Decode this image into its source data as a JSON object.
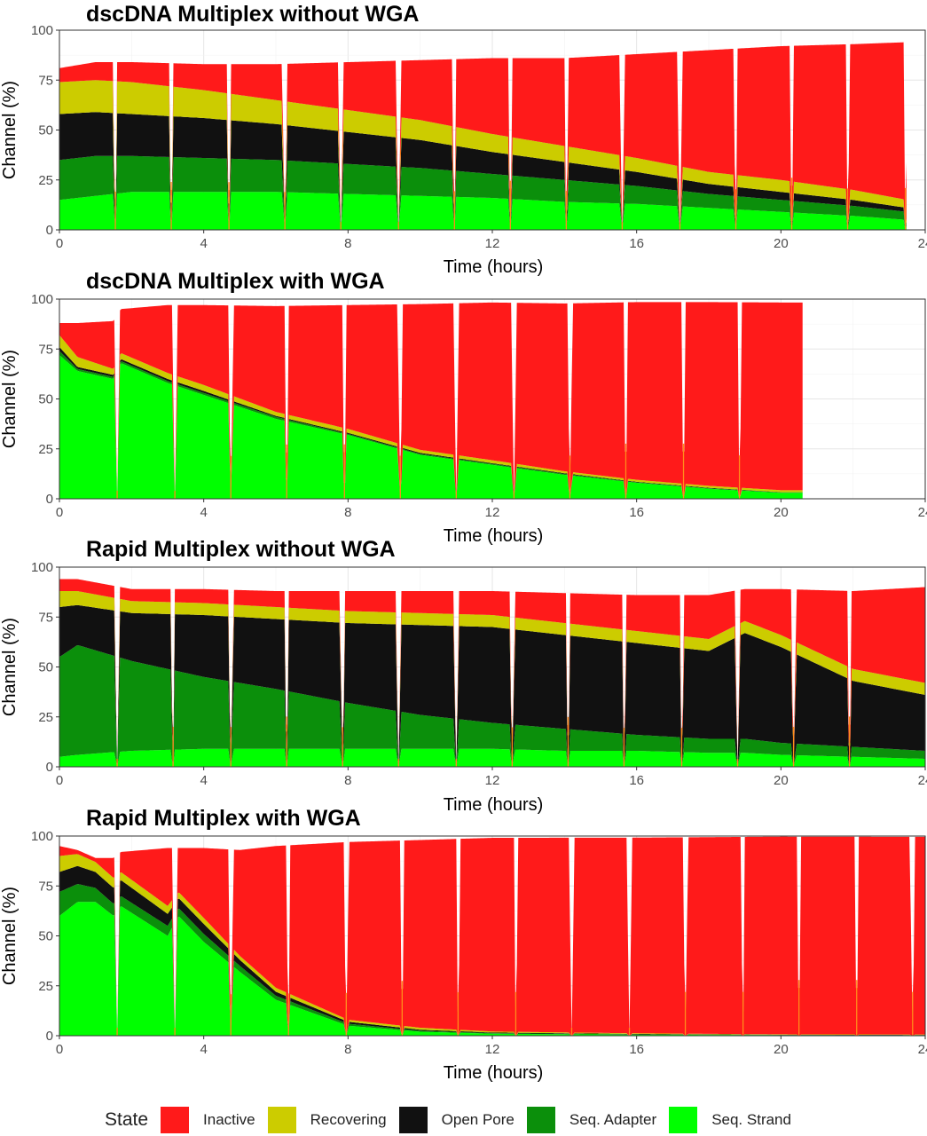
{
  "chart_data": [
    {
      "type": "area",
      "stacked": true,
      "title": "dscDNA Multiplex without WGA",
      "xlabel": "Time (hours)",
      "ylabel": "Channel (%)",
      "xlim": [
        0,
        24
      ],
      "ylim": [
        0,
        100
      ],
      "xticks": [
        0,
        4,
        8,
        12,
        16,
        20,
        24
      ],
      "yticks": [
        0,
        25,
        50,
        75,
        100
      ],
      "grid": true,
      "end_time": 23.5,
      "mux_scan_times": [
        1.55,
        3.1,
        4.7,
        6.25,
        7.8,
        9.4,
        10.95,
        12.5,
        14.05,
        15.6,
        17.2,
        18.75,
        20.3,
        21.85,
        23.45
      ],
      "x": [
        0,
        1,
        2,
        4,
        6,
        8,
        10,
        12,
        14,
        16,
        18,
        20,
        22,
        23.5
      ],
      "series": [
        {
          "name": "Seq. Strand",
          "values": [
            15,
            17,
            19,
            19,
            19,
            18,
            17,
            16,
            14,
            13,
            11,
            9,
            7,
            5
          ]
        },
        {
          "name": "Seq. Adapter",
          "values": [
            20,
            20,
            18,
            17,
            16,
            15,
            14,
            12,
            11,
            9,
            7,
            6,
            5,
            4
          ]
        },
        {
          "name": "Open Pore",
          "values": [
            23,
            22,
            21,
            20,
            18,
            16,
            14,
            11,
            9,
            7,
            5,
            4,
            3,
            2
          ]
        },
        {
          "name": "Recovering",
          "values": [
            16,
            16,
            16,
            14,
            12,
            11,
            10,
            9,
            8,
            7,
            6,
            6,
            5,
            4
          ]
        },
        {
          "name": "Inactive",
          "values": [
            7,
            9,
            10,
            13,
            18,
            24,
            30,
            38,
            44,
            52,
            61,
            67,
            73,
            79
          ]
        }
      ]
    },
    {
      "type": "area",
      "stacked": true,
      "title": "dscDNA Multiplex with WGA",
      "xlabel": "Time (hours)",
      "ylabel": "Channel (%)",
      "xlim": [
        0,
        24
      ],
      "ylim": [
        0,
        100
      ],
      "xticks": [
        0,
        4,
        8,
        12,
        16,
        20,
        24
      ],
      "yticks": [
        0,
        25,
        50,
        75,
        100
      ],
      "grid": true,
      "end_time": 20.6,
      "mux_scan_times": [
        1.6,
        3.2,
        4.75,
        6.3,
        7.9,
        9.45,
        11.0,
        12.6,
        14.15,
        15.7,
        17.3,
        18.85
      ],
      "x": [
        0,
        0.5,
        1.5,
        1.7,
        3,
        4,
        6,
        8,
        10,
        12,
        14,
        16,
        18,
        20,
        20.6
      ],
      "series": [
        {
          "name": "Seq. Strand",
          "values": [
            72,
            64,
            60,
            68,
            58,
            52,
            40,
            32,
            22,
            17,
            12,
            8,
            5,
            3,
            3
          ]
        },
        {
          "name": "Seq. Adapter",
          "values": [
            2,
            1,
            1,
            1,
            1,
            1,
            1,
            0.5,
            0.5,
            0.5,
            0.5,
            0.3,
            0.3,
            0.2,
            0.2
          ]
        },
        {
          "name": "Open Pore",
          "values": [
            2,
            1,
            1,
            1,
            1,
            1,
            0.5,
            0.5,
            0.5,
            0.3,
            0.3,
            0.2,
            0.2,
            0.1,
            0.1
          ]
        },
        {
          "name": "Recovering",
          "values": [
            6,
            5,
            3,
            3,
            3,
            3,
            2,
            2,
            1.5,
            1.5,
            1,
            1,
            1,
            1,
            1
          ]
        },
        {
          "name": "Inactive",
          "values": [
            6,
            17,
            24,
            22,
            34,
            40,
            53,
            62,
            73,
            79,
            84,
            89,
            92,
            94,
            94
          ]
        }
      ]
    },
    {
      "type": "area",
      "stacked": true,
      "title": "Rapid Multiplex without WGA",
      "xlabel": "Time (hours)",
      "ylabel": "Channel (%)",
      "xlim": [
        0,
        24
      ],
      "ylim": [
        0,
        100
      ],
      "xticks": [
        0,
        4,
        8,
        12,
        16,
        20,
        24
      ],
      "yticks": [
        0,
        25,
        50,
        75,
        100
      ],
      "grid": true,
      "end_time": 24,
      "mux_scan_times": [
        1.6,
        3.15,
        4.75,
        6.3,
        7.85,
        9.4,
        11.0,
        12.55,
        14.1,
        15.65,
        17.25,
        18.8,
        20.35,
        21.9
      ],
      "x": [
        0,
        0.5,
        2,
        4,
        6,
        8,
        10,
        12,
        14,
        16,
        18,
        19,
        20,
        22,
        24
      ],
      "series": [
        {
          "name": "Seq. Strand",
          "values": [
            5,
            6,
            8,
            9,
            9,
            9,
            9,
            9,
            8,
            8,
            7,
            7,
            6,
            5,
            4
          ]
        },
        {
          "name": "Seq. Adapter",
          "values": [
            50,
            55,
            45,
            36,
            30,
            23,
            17,
            13,
            11,
            8,
            7,
            7,
            6,
            5,
            4
          ]
        },
        {
          "name": "Open Pore",
          "values": [
            25,
            20,
            24,
            31,
            35,
            40,
            45,
            48,
            47,
            46,
            44,
            53,
            48,
            33,
            28
          ]
        },
        {
          "name": "Recovering",
          "values": [
            8,
            7,
            6,
            6,
            6,
            6,
            6,
            6,
            6,
            6,
            6,
            6,
            6,
            6,
            6
          ]
        },
        {
          "name": "Inactive",
          "values": [
            6,
            6,
            6,
            7,
            8,
            10,
            11,
            12,
            15,
            18,
            22,
            16,
            23,
            39,
            48
          ]
        }
      ]
    },
    {
      "type": "area",
      "stacked": true,
      "title": "Rapid Multiplex with WGA",
      "xlabel": "Time (hours)",
      "ylabel": "Channel (%)",
      "xlim": [
        0,
        24
      ],
      "ylim": [
        0,
        100
      ],
      "xticks": [
        0,
        4,
        8,
        12,
        16,
        20,
        24
      ],
      "yticks": [
        0,
        25,
        50,
        75,
        100
      ],
      "grid": true,
      "end_time": 24,
      "mux_scan_times": [
        1.6,
        3.2,
        4.75,
        6.35,
        7.95,
        9.5,
        11.05,
        12.65,
        14.2,
        15.8,
        17.35,
        18.95,
        20.5,
        22.1,
        23.65
      ],
      "x": [
        0,
        0.5,
        1,
        1.5,
        1.7,
        3,
        3.3,
        4,
        5,
        6,
        8,
        10,
        12,
        16,
        20,
        24
      ],
      "series": [
        {
          "name": "Seq. Strand",
          "values": [
            60,
            67,
            67,
            60,
            65,
            50,
            60,
            47,
            32,
            18,
            5,
            2,
            1,
            0.5,
            0.3,
            0.2
          ]
        },
        {
          "name": "Seq. Adapter",
          "values": [
            12,
            9,
            7,
            6,
            5,
            5,
            4,
            4,
            3,
            2,
            1,
            0.5,
            0.3,
            0.2,
            0.1,
            0.1
          ]
        },
        {
          "name": "Open Pore",
          "values": [
            10,
            9,
            8,
            8,
            8,
            6,
            5,
            5,
            3,
            2,
            1,
            0.5,
            0.3,
            0.2,
            0.1,
            0.1
          ]
        },
        {
          "name": "Recovering",
          "values": [
            8,
            6,
            5,
            5,
            4,
            4,
            3,
            3,
            2,
            2,
            1,
            1,
            0.5,
            0.3,
            0.2,
            0.2
          ]
        },
        {
          "name": "Inactive",
          "values": [
            5,
            2,
            2,
            10,
            10,
            29,
            22,
            35,
            53,
            71,
            89,
            94,
            97,
            98,
            99,
            99
          ]
        }
      ]
    }
  ],
  "legend": {
    "title": "State",
    "items": [
      {
        "label": "Inactive",
        "color": "#ff1a1a"
      },
      {
        "label": "Recovering",
        "color": "#cccc00"
      },
      {
        "label": "Open Pore",
        "color": "#111111"
      },
      {
        "label": "Seq. Adapter",
        "color": "#0b8f0b"
      },
      {
        "label": "Seq. Strand",
        "color": "#00ff00"
      }
    ]
  },
  "series_colors": {
    "Seq. Strand": "#00ff00",
    "Seq. Adapter": "#0b8f0b",
    "Open Pore": "#111111",
    "Recovering": "#cccc00",
    "Inactive": "#ff1a1a"
  }
}
